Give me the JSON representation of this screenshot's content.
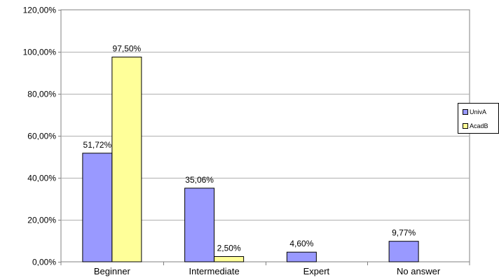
{
  "chart_data": {
    "type": "bar",
    "categories": [
      "Beginner",
      "Intermediate",
      "Expert",
      "No answer"
    ],
    "series": [
      {
        "name": "UnivA",
        "values": [
          51.72,
          35.06,
          4.6,
          9.77
        ],
        "labels": [
          "51,72%",
          "35,06%",
          "4,60%",
          "9,77%"
        ]
      },
      {
        "name": "AcadB",
        "values": [
          97.5,
          2.5,
          0,
          0
        ],
        "labels": [
          "97,50%",
          "2,50%",
          "",
          ""
        ]
      }
    ],
    "ylim": [
      0,
      120
    ],
    "yticks": [
      0,
      20,
      40,
      60,
      80,
      100,
      120
    ],
    "ytick_labels": [
      "0,00%",
      "20,00%",
      "40,00%",
      "60,00%",
      "80,00%",
      "100,00%",
      "120,00%"
    ],
    "grid": true,
    "legend": "right",
    "colors": {
      "UnivA": "#9999ff",
      "AcadB": "#ffff99",
      "grid": "#b0b0b0",
      "axis": "#808080"
    }
  }
}
